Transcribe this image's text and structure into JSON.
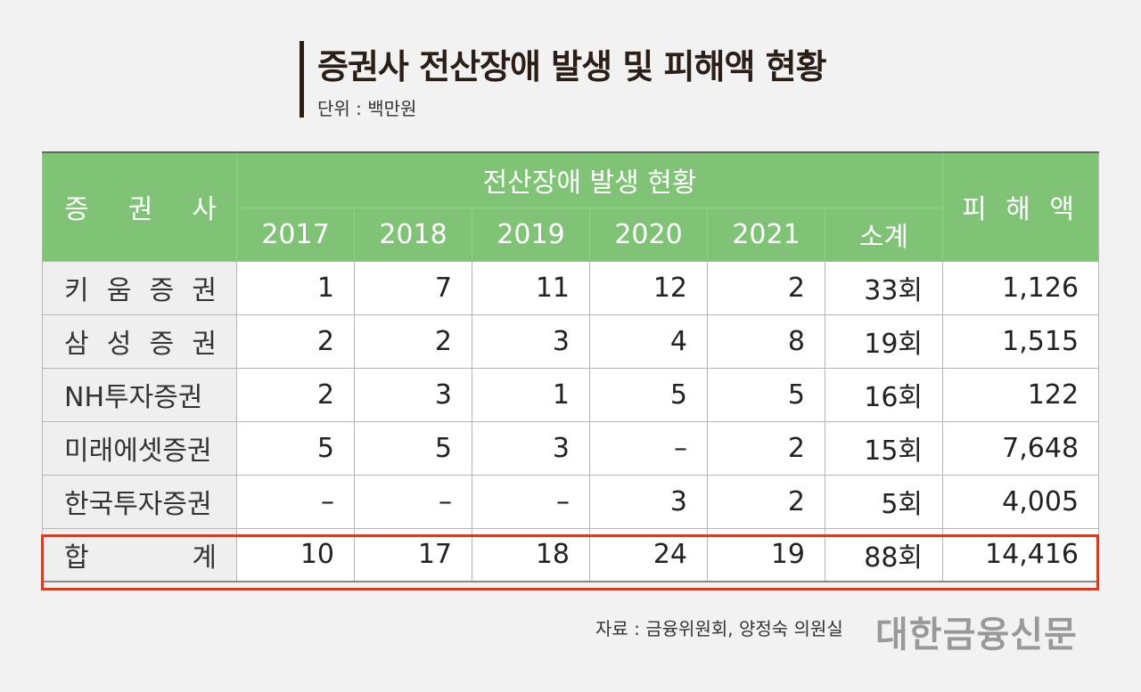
{
  "title": "증권사 전산장애 발생 및 피해액 현황",
  "unit": "단위 : 백만원",
  "header": {
    "company": "증 권 사",
    "group": "전산장애 발생 현황",
    "damage": "피 해 액",
    "years": [
      "2017",
      "2018",
      "2019",
      "2020",
      "2021",
      "소계"
    ]
  },
  "rows": [
    {
      "name": "키 움 증 권",
      "v": [
        "1",
        "7",
        "11",
        "12",
        "2",
        "33회"
      ],
      "damage": "1,126"
    },
    {
      "name": "삼 성 증 권",
      "v": [
        "2",
        "2",
        "3",
        "4",
        "8",
        "19회"
      ],
      "damage": "1,515"
    },
    {
      "name": "NH투자증권",
      "v": [
        "2",
        "3",
        "1",
        "5",
        "5",
        "16회"
      ],
      "damage": "122"
    },
    {
      "name": "미래에셋증권",
      "v": [
        "5",
        "5",
        "3",
        "–",
        "2",
        "15회"
      ],
      "damage": "7,648"
    },
    {
      "name": "한국투자증권",
      "v": [
        "–",
        "–",
        "–",
        "3",
        "2",
        "5회"
      ],
      "damage": "4,005"
    },
    {
      "name": "합 계",
      "v": [
        "10",
        "17",
        "18",
        "24",
        "19",
        "88회"
      ],
      "damage": "14,416"
    }
  ],
  "source": "자료 : 금융위원회, 양정숙 의원실",
  "brand": "대한금융신문"
}
